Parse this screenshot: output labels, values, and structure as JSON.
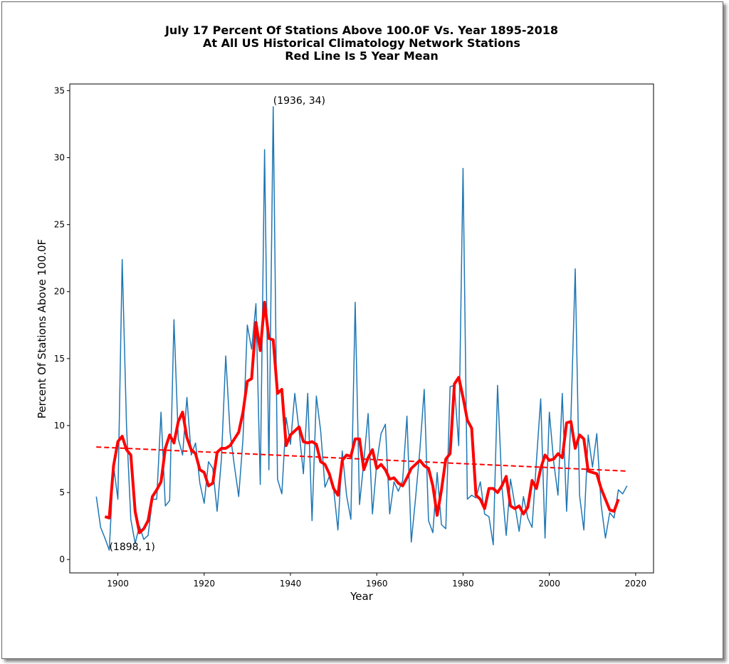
{
  "chart_data": {
    "type": "line",
    "title": [
      "July 17 Percent Of Stations Above 100.0F Vs. Year 1895-2018",
      "At All US Historical Climatology Network Stations",
      "Red Line Is 5 Year Mean"
    ],
    "xlabel": "Year",
    "ylabel": "Percent Of Stations Above 100.0F",
    "xlim": [
      1888.85,
      2024.15
    ],
    "ylim": [
      -1.0,
      35.5
    ],
    "xticks": [
      1900,
      1920,
      1940,
      1960,
      1980,
      2000,
      2020
    ],
    "yticks": [
      0,
      5,
      10,
      15,
      20,
      25,
      30,
      35
    ],
    "grid": false,
    "series": [
      {
        "color": "#1f77b4",
        "linestyle": "solid",
        "x": [
          1895,
          1896,
          1897,
          1898,
          1899,
          1900,
          1901,
          1902,
          1903,
          1904,
          1905,
          1906,
          1907,
          1908,
          1909,
          1910,
          1911,
          1912,
          1913,
          1914,
          1915,
          1916,
          1917,
          1918,
          1919,
          1920,
          1921,
          1922,
          1923,
          1924,
          1925,
          1926,
          1927,
          1928,
          1929,
          1930,
          1931,
          1932,
          1933,
          1934,
          1935,
          1936,
          1937,
          1938,
          1939,
          1940,
          1941,
          1942,
          1943,
          1944,
          1945,
          1946,
          1947,
          1948,
          1949,
          1950,
          1951,
          1952,
          1953,
          1954,
          1955,
          1956,
          1957,
          1958,
          1959,
          1960,
          1961,
          1962,
          1963,
          1964,
          1965,
          1966,
          1967,
          1968,
          1969,
          1970,
          1971,
          1972,
          1973,
          1974,
          1975,
          1976,
          1977,
          1978,
          1979,
          1980,
          1981,
          1982,
          1983,
          1984,
          1985,
          1986,
          1987,
          1988,
          1989,
          1990,
          1991,
          1992,
          1993,
          1994,
          1995,
          1996,
          1997,
          1998,
          1999,
          2000,
          2001,
          2002,
          2003,
          2004,
          2005,
          2006,
          2007,
          2008,
          2009,
          2010,
          2011,
          2012,
          2013,
          2014,
          2015,
          2016,
          2017,
          2018
        ],
        "values": [
          4.7,
          2.4,
          1.6,
          0.7,
          7.0,
          4.5,
          22.4,
          10,
          3,
          1.2,
          2.5,
          1.5,
          1.8,
          4.5,
          4.5,
          11,
          4,
          4.4,
          17.9,
          9,
          7.8,
          12.1,
          7.8,
          8.7,
          5.7,
          4.2,
          7.3,
          6.8,
          3.6,
          7.5,
          15.2,
          9.5,
          7.0,
          4.7,
          9,
          17.5,
          15.7,
          19.1,
          5.6,
          30.6,
          6.7,
          33.8,
          6,
          4.9,
          10.6,
          8.6,
          12.4,
          9.6,
          6.4,
          12.4,
          2.9,
          12.2,
          9.6,
          5.4,
          6.2,
          5.3,
          2.2,
          8.1,
          4.8,
          3,
          19.2,
          4.1,
          7.3,
          10.9,
          3.4,
          7.2,
          9.4,
          10.1,
          3.4,
          5.8,
          5.1,
          5.9,
          10.7,
          1.3,
          4.6,
          8.2,
          12.7,
          2.9,
          2,
          6.5,
          2.6,
          2.3,
          12.9,
          13,
          8.5,
          29.2,
          4.5,
          4.8,
          4.6,
          5.8,
          3.4,
          3.2,
          1.1,
          13,
          5.5,
          1.8,
          6,
          4.1,
          2.1,
          4.7,
          3.1,
          2.4,
          7.3,
          12,
          1.6,
          11,
          7.3,
          4.8,
          12.4,
          3.6,
          10.5,
          21.7,
          4.8,
          2.2,
          9.3,
          6.9,
          9.4,
          4.1,
          1.6,
          3.5,
          3.1,
          5.2,
          4.9,
          5.5
        ]
      },
      {
        "color": "#ff0000",
        "linestyle": "solid",
        "x": [
          1897,
          1898,
          1899,
          1900,
          1901,
          1902,
          1903,
          1904,
          1905,
          1906,
          1907,
          1908,
          1909,
          1910,
          1911,
          1912,
          1913,
          1914,
          1915,
          1916,
          1917,
          1918,
          1919,
          1920,
          1921,
          1922,
          1923,
          1924,
          1925,
          1926,
          1927,
          1928,
          1929,
          1930,
          1931,
          1932,
          1933,
          1934,
          1935,
          1936,
          1937,
          1938,
          1939,
          1940,
          1941,
          1942,
          1943,
          1944,
          1945,
          1946,
          1947,
          1948,
          1949,
          1950,
          1951,
          1952,
          1953,
          1954,
          1955,
          1956,
          1957,
          1958,
          1959,
          1960,
          1961,
          1962,
          1963,
          1964,
          1965,
          1966,
          1967,
          1968,
          1969,
          1970,
          1971,
          1972,
          1973,
          1974,
          1975,
          1976,
          1977,
          1978,
          1979,
          1980,
          1981,
          1982,
          1983,
          1984,
          1985,
          1986,
          1987,
          1988,
          1989,
          1990,
          1991,
          1992,
          1993,
          1994,
          1995,
          1996,
          1997,
          1998,
          1999,
          2000,
          2001,
          2002,
          2003,
          2004,
          2005,
          2006,
          2007,
          2008,
          2009,
          2010,
          2011,
          2012,
          2013,
          2014,
          2015,
          2016
        ],
        "values": [
          3.2,
          3.1,
          7.0,
          8.8,
          9.2,
          8.2,
          7.8,
          3.6,
          2.0,
          2.3,
          2.9,
          4.7,
          5.2,
          5.8,
          8.3,
          9.3,
          8.7,
          10.3,
          11.0,
          9.1,
          8.2,
          7.9,
          6.7,
          6.5,
          5.5,
          5.7,
          8.0,
          8.3,
          8.3,
          8.5,
          9.0,
          9.5,
          11.0,
          13.3,
          13.5,
          17.7,
          15.6,
          19.2,
          16.5,
          16.4,
          12.4,
          12.7,
          8.5,
          9.3,
          9.6,
          9.9,
          8.8,
          8.7,
          8.8,
          8.6,
          7.3,
          7.1,
          6.4,
          5.3,
          4.8,
          7.4,
          7.8,
          7.7,
          9.0,
          9.0,
          6.7,
          7.6,
          8.2,
          6.8,
          7.1,
          6.7,
          6.0,
          6.1,
          5.7,
          5.5,
          6.1,
          6.8,
          7.1,
          7.4,
          7.0,
          6.8,
          5.5,
          3.3,
          5.2,
          7.5,
          7.9,
          13.1,
          13.6,
          12.1,
          10.4,
          9.8,
          4.8,
          4.5,
          3.8,
          5.3,
          5.3,
          5.0,
          5.5,
          6.2,
          4.0,
          3.8,
          4.0,
          3.4,
          3.9,
          5.9,
          5.3,
          6.8,
          7.8,
          7.4,
          7.5,
          7.9,
          7.6,
          10.2,
          10.3,
          8.3,
          9.3,
          9.0,
          6.6,
          6.5,
          6.4,
          5.3,
          4.5,
          3.7,
          3.6,
          4.5
        ]
      },
      {
        "color": "#ff0000",
        "linestyle": "dashed",
        "x": [
          1895,
          2018
        ],
        "values": [
          8.4,
          6.6
        ]
      }
    ],
    "annotations": [
      {
        "text": "(1936, 34)",
        "x": 1936,
        "y": 34
      },
      {
        "text": "(1898, 1)",
        "x": 1898,
        "y": 0.7
      }
    ]
  }
}
